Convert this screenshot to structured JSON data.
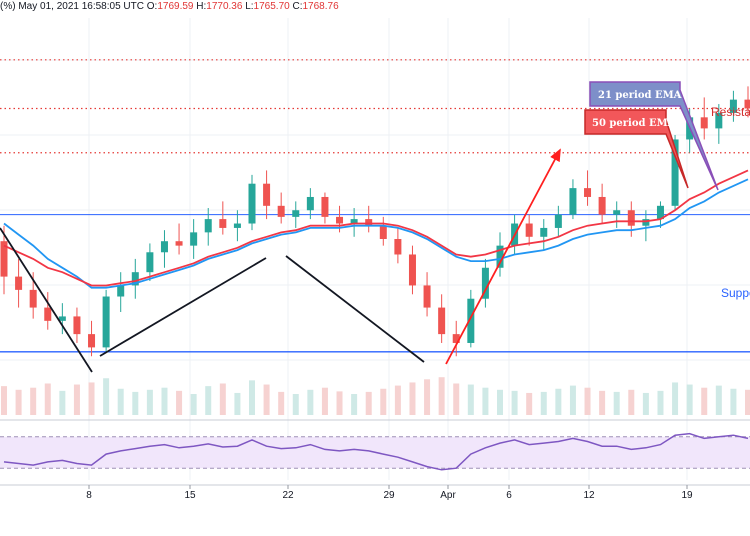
{
  "header": {
    "prefix": "(%)",
    "datetime": "May 01, 2021 16:58:05 UTC",
    "open_label": "O:",
    "open": "1769.59",
    "high_label": "H:",
    "high": "1770.36",
    "low_label": "L:",
    "low": "1765.70",
    "close_label": "C:",
    "close": "1768.76"
  },
  "annotations": {
    "ema21": "21 period EMA",
    "ema50": "50 period EMA",
    "resistance": "Resistance",
    "support": "Support"
  },
  "colors": {
    "bull": "#26a69a",
    "bear": "#ef5350",
    "ema21": "#2196f3",
    "ema50": "#f23645",
    "rsi": "#7e57c2",
    "rsi_band": "#f1e6fb",
    "hline": "#2962ff",
    "dotted": "#e53935",
    "trend": "#131722",
    "arrow": "#ff1f1f",
    "vol_bull": "#cfe9e6",
    "vol_bear": "#f6d2d1"
  },
  "chart_data": {
    "type": "candlestick",
    "xaxis_ticks": [
      "8",
      "15",
      "22",
      "29",
      "Apr",
      "6",
      "12",
      "19"
    ],
    "x_start": "2021-03-01",
    "ohlc": [
      [
        1730,
        1737,
        1706,
        1714
      ],
      [
        1714,
        1722,
        1700,
        1708
      ],
      [
        1708,
        1716,
        1695,
        1700
      ],
      [
        1700,
        1707,
        1690,
        1694
      ],
      [
        1694,
        1702,
        1688,
        1696
      ],
      [
        1696,
        1700,
        1684,
        1688
      ],
      [
        1688,
        1694,
        1678,
        1682
      ],
      [
        1682,
        1708,
        1680,
        1705
      ],
      [
        1705,
        1716,
        1698,
        1710
      ],
      [
        1710,
        1722,
        1704,
        1716
      ],
      [
        1716,
        1729,
        1712,
        1725
      ],
      [
        1725,
        1735,
        1718,
        1730
      ],
      [
        1730,
        1738,
        1724,
        1728
      ],
      [
        1728,
        1740,
        1722,
        1734
      ],
      [
        1734,
        1745,
        1728,
        1740
      ],
      [
        1740,
        1748,
        1733,
        1736
      ],
      [
        1736,
        1744,
        1730,
        1738
      ],
      [
        1738,
        1760,
        1735,
        1756
      ],
      [
        1756,
        1762,
        1740,
        1746
      ],
      [
        1746,
        1752,
        1738,
        1741
      ],
      [
        1741,
        1748,
        1736,
        1744
      ],
      [
        1744,
        1754,
        1740,
        1750
      ],
      [
        1750,
        1752,
        1738,
        1741
      ],
      [
        1741,
        1746,
        1734,
        1738
      ],
      [
        1738,
        1745,
        1732,
        1740
      ],
      [
        1740,
        1746,
        1734,
        1737
      ],
      [
        1737,
        1741,
        1728,
        1731
      ],
      [
        1731,
        1736,
        1720,
        1724
      ],
      [
        1724,
        1728,
        1706,
        1710
      ],
      [
        1710,
        1716,
        1696,
        1700
      ],
      [
        1700,
        1706,
        1684,
        1688
      ],
      [
        1688,
        1694,
        1678,
        1684
      ],
      [
        1684,
        1708,
        1682,
        1704
      ],
      [
        1704,
        1722,
        1700,
        1718
      ],
      [
        1718,
        1734,
        1714,
        1728
      ],
      [
        1728,
        1742,
        1724,
        1738
      ],
      [
        1738,
        1742,
        1728,
        1732
      ],
      [
        1732,
        1740,
        1726,
        1736
      ],
      [
        1736,
        1746,
        1732,
        1742
      ],
      [
        1742,
        1758,
        1740,
        1754
      ],
      [
        1754,
        1762,
        1746,
        1750
      ],
      [
        1750,
        1756,
        1738,
        1742
      ],
      [
        1742,
        1748,
        1736,
        1744
      ],
      [
        1744,
        1748,
        1732,
        1737
      ],
      [
        1737,
        1744,
        1730,
        1740
      ],
      [
        1740,
        1748,
        1736,
        1746
      ],
      [
        1746,
        1778,
        1744,
        1776
      ],
      [
        1776,
        1790,
        1770,
        1786
      ],
      [
        1786,
        1795,
        1776,
        1781
      ],
      [
        1781,
        1792,
        1774,
        1788
      ],
      [
        1788,
        1798,
        1784,
        1794
      ],
      [
        1794,
        1800,
        1786,
        1790
      ]
    ],
    "ema21": [
      1738,
      1733,
      1728,
      1722,
      1718,
      1714,
      1709,
      1709,
      1710,
      1711,
      1713,
      1715,
      1717,
      1719,
      1722,
      1724,
      1726,
      1729,
      1731,
      1733,
      1734,
      1736,
      1736,
      1736,
      1737,
      1737,
      1737,
      1736,
      1734,
      1731,
      1727,
      1723,
      1721,
      1721,
      1722,
      1724,
      1725,
      1726,
      1728,
      1731,
      1733,
      1734,
      1735,
      1735,
      1736,
      1737,
      1740,
      1745,
      1748,
      1752,
      1755,
      1758
    ],
    "ema50": [
      1728,
      1725,
      1722,
      1718,
      1716,
      1713,
      1710,
      1710,
      1711,
      1712,
      1714,
      1716,
      1718,
      1720,
      1723,
      1725,
      1727,
      1730,
      1732,
      1734,
      1735,
      1737,
      1737,
      1737,
      1738,
      1738,
      1738,
      1737,
      1735,
      1732,
      1728,
      1724,
      1723,
      1724,
      1726,
      1728,
      1729,
      1730,
      1732,
      1735,
      1737,
      1738,
      1739,
      1739,
      1739,
      1740,
      1744,
      1749,
      1752,
      1756,
      1759,
      1762
    ],
    "volume": [
      55,
      48,
      52,
      60,
      46,
      58,
      62,
      70,
      50,
      44,
      48,
      52,
      46,
      40,
      55,
      60,
      42,
      66,
      58,
      44,
      40,
      48,
      52,
      45,
      40,
      44,
      50,
      56,
      62,
      68,
      72,
      60,
      58,
      52,
      48,
      46,
      42,
      44,
      50,
      56,
      52,
      46,
      44,
      48,
      42,
      46,
      62,
      58,
      52,
      56,
      50,
      48
    ],
    "rsi": [
      38,
      36,
      34,
      38,
      40,
      36,
      34,
      48,
      52,
      55,
      58,
      60,
      56,
      58,
      61,
      57,
      58,
      66,
      58,
      55,
      56,
      60,
      54,
      52,
      54,
      52,
      48,
      44,
      38,
      32,
      28,
      30,
      48,
      56,
      62,
      66,
      60,
      62,
      64,
      68,
      64,
      58,
      58,
      54,
      56,
      60,
      72,
      74,
      68,
      70,
      72,
      68
    ],
    "rsi_levels": [
      70,
      30
    ],
    "support": 1742,
    "bottom_line": 1680,
    "resistance_levels": [
      1812,
      1790,
      1770
    ]
  }
}
